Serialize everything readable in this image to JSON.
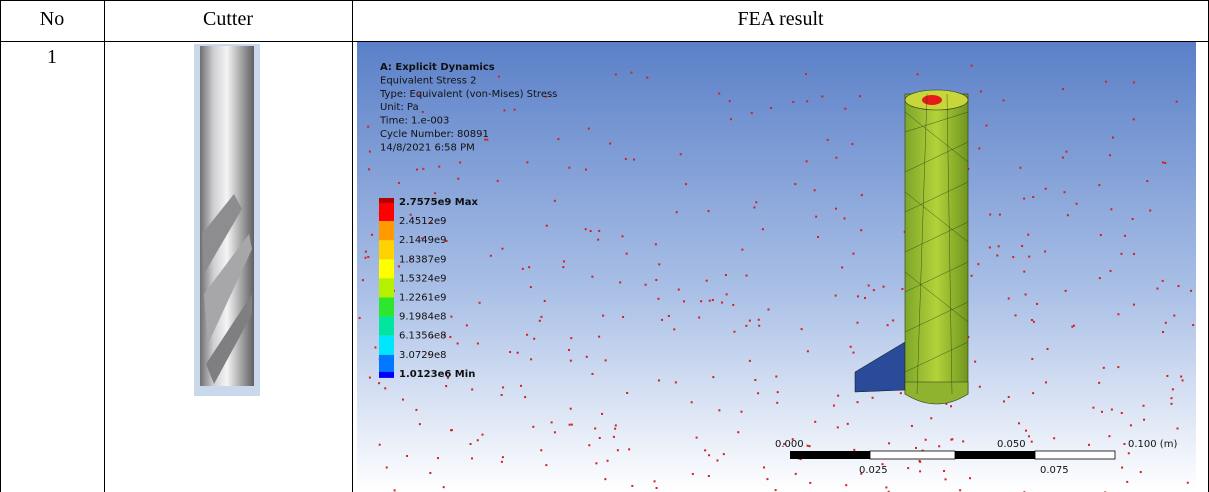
{
  "table": {
    "header": [
      "No",
      "Cutter",
      "FEA result"
    ],
    "rows": [
      [
        "1"
      ]
    ]
  },
  "fea_image": {
    "info": [
      "A: Explicit Dynamics",
      "Equivalent Stress 2",
      "Type: Equivalent (von-Mises) Stress",
      "Unit: Pa",
      "Time: 1.e-003",
      "Cycle Number: 80891",
      "14/8/2021 6:58 PM"
    ],
    "legend": [
      "2.7575e9 Max",
      "2.4512e9",
      "2.1449e9",
      "1.8387e9",
      "1.5324e9",
      "1.2261e9",
      "9.1984e8",
      "6.1356e8",
      "3.0729e8",
      "1.0123e6 Min"
    ],
    "scale_top": [
      "0.000",
      "0.050",
      "0.100 (m)"
    ],
    "scale_bottom": [
      "0.025",
      "0.075"
    ]
  }
}
